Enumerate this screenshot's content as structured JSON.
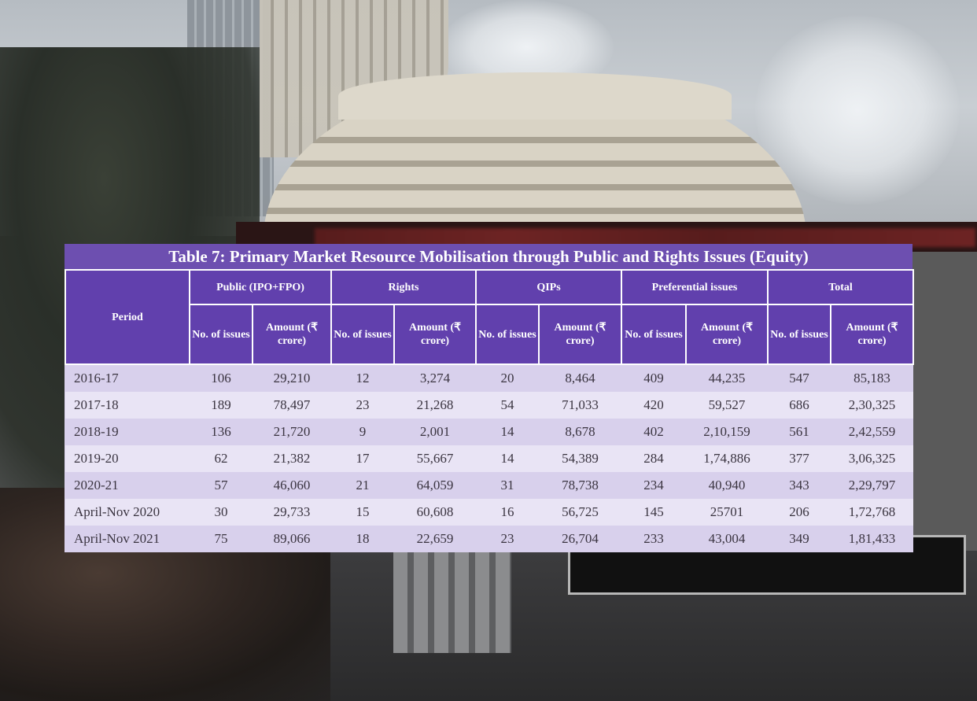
{
  "table": {
    "caption": "Table 7: Primary Market Resource Mobilisation through Public and Rights Issues (Equity)",
    "period_header": "Period",
    "groups": [
      "Public (IPO+FPO)",
      "Rights",
      "QIPs",
      "Preferential issues",
      "Total"
    ],
    "sub_headers": {
      "count": "No. of issues",
      "amount": "Amount (₹ crore)"
    },
    "rows": [
      {
        "period": "2016-17",
        "values": [
          "106",
          "29,210",
          "12",
          "3,274",
          "20",
          "8,464",
          "409",
          "44,235",
          "547",
          "85,183"
        ]
      },
      {
        "period": "2017-18",
        "values": [
          "189",
          "78,497",
          "23",
          "21,268",
          "54",
          "71,033",
          "420",
          "59,527",
          "686",
          "2,30,325"
        ]
      },
      {
        "period": "2018-19",
        "values": [
          "136",
          "21,720",
          "9",
          "2,001",
          "14",
          "8,678",
          "402",
          "2,10,159",
          "561",
          "2,42,559"
        ]
      },
      {
        "period": "2019-20",
        "values": [
          "62",
          "21,382",
          "17",
          "55,667",
          "14",
          "54,389",
          "284",
          "1,74,886",
          "377",
          "3,06,325"
        ]
      },
      {
        "period": "2020-21",
        "values": [
          "57",
          "46,060",
          "21",
          "64,059",
          "31",
          "78,738",
          "234",
          "40,940",
          "343",
          "2,29,797"
        ]
      },
      {
        "period": "April-Nov 2020",
        "values": [
          "30",
          "29,733",
          "15",
          "60,608",
          "16",
          "56,725",
          "145",
          "25701",
          "206",
          "1,72,768"
        ]
      },
      {
        "period": "April-Nov 2021",
        "values": [
          "75",
          "89,066",
          "18",
          "22,659",
          "23",
          "26,704",
          "233",
          "43,004",
          "349",
          "1,81,433"
        ]
      }
    ]
  },
  "colors": {
    "header_purple": "#6140ad",
    "caption_purple": "#6d4fb0",
    "row_odd": "#d8d0ec",
    "row_even": "#e9e4f5"
  }
}
